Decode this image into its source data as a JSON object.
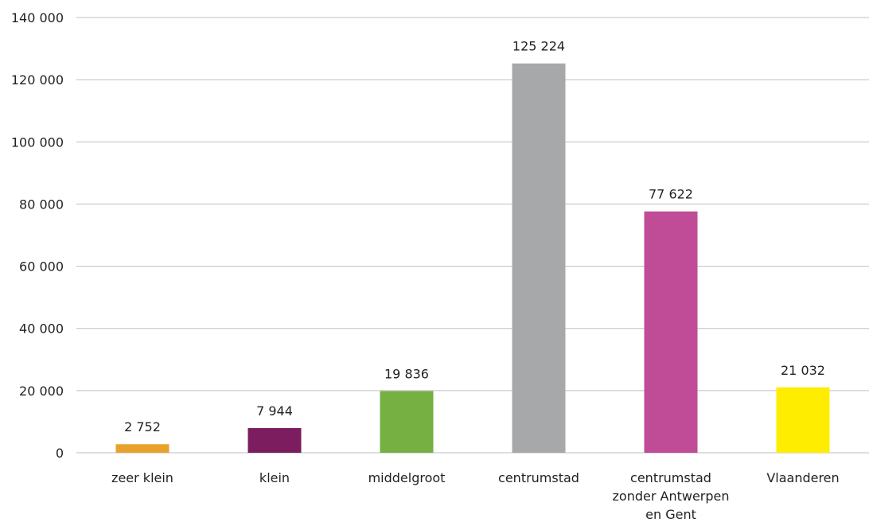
{
  "chart_data": {
    "type": "bar",
    "categories": [
      [
        "zeer klein"
      ],
      [
        "klein"
      ],
      [
        "middelgroot"
      ],
      [
        "centrumstad"
      ],
      [
        "centrumstad",
        "zonder Antwerpen",
        "en Gent"
      ],
      [
        "Vlaanderen"
      ]
    ],
    "values": [
      2752,
      7944,
      19836,
      125224,
      77622,
      21032
    ],
    "value_labels": [
      "2 752",
      "7 944",
      "19 836",
      "125 224",
      "77 622",
      "21 032"
    ],
    "colors": [
      "#e8a22c",
      "#7b1d5e",
      "#76b043",
      "#a7a8aa",
      "#c04b96",
      "#ffed00"
    ],
    "ylim": [
      0,
      140000
    ],
    "yticks": [
      0,
      20000,
      40000,
      60000,
      80000,
      100000,
      120000,
      140000
    ],
    "ytick_labels": [
      "0",
      "20 000",
      "40 000",
      "60 000",
      "80 000",
      "100 000",
      "120 000",
      "140 000"
    ],
    "grid": true,
    "title": "",
    "xlabel": "",
    "ylabel": ""
  }
}
